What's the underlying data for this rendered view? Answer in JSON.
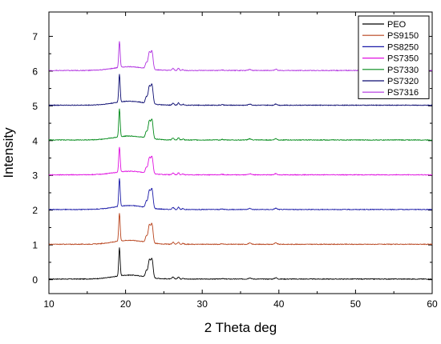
{
  "chart_data": {
    "type": "line",
    "title": "",
    "xlabel": "2 Theta deg",
    "ylabel": "Intensity",
    "xlim": [
      10,
      60
    ],
    "ylim": [
      -0.4,
      7.7
    ],
    "xticks": [
      10,
      20,
      30,
      40,
      50,
      60
    ],
    "yticks": [
      0,
      1,
      2,
      3,
      4,
      5,
      6,
      7
    ],
    "grid": false,
    "legend_position": "top-right",
    "series": [
      {
        "name": "PEO",
        "color": "#000000",
        "offset": 0,
        "peak_scale": 0.95
      },
      {
        "name": "PS9150",
        "color": "#b8431c",
        "offset": 1,
        "peak_scale": 0.95
      },
      {
        "name": "PS8250",
        "color": "#1a1aa8",
        "offset": 2,
        "peak_scale": 0.95
      },
      {
        "name": "PS7350",
        "color": "#e010e0",
        "offset": 3,
        "peak_scale": 0.85
      },
      {
        "name": "PS7330",
        "color": "#008a18",
        "offset": 4,
        "peak_scale": 0.95
      },
      {
        "name": "PS7320",
        "color": "#0a0a70",
        "offset": 5,
        "peak_scale": 0.95
      },
      {
        "name": "PS7316",
        "color": "#b030e0",
        "offset": 6,
        "peak_scale": 0.9
      }
    ]
  }
}
